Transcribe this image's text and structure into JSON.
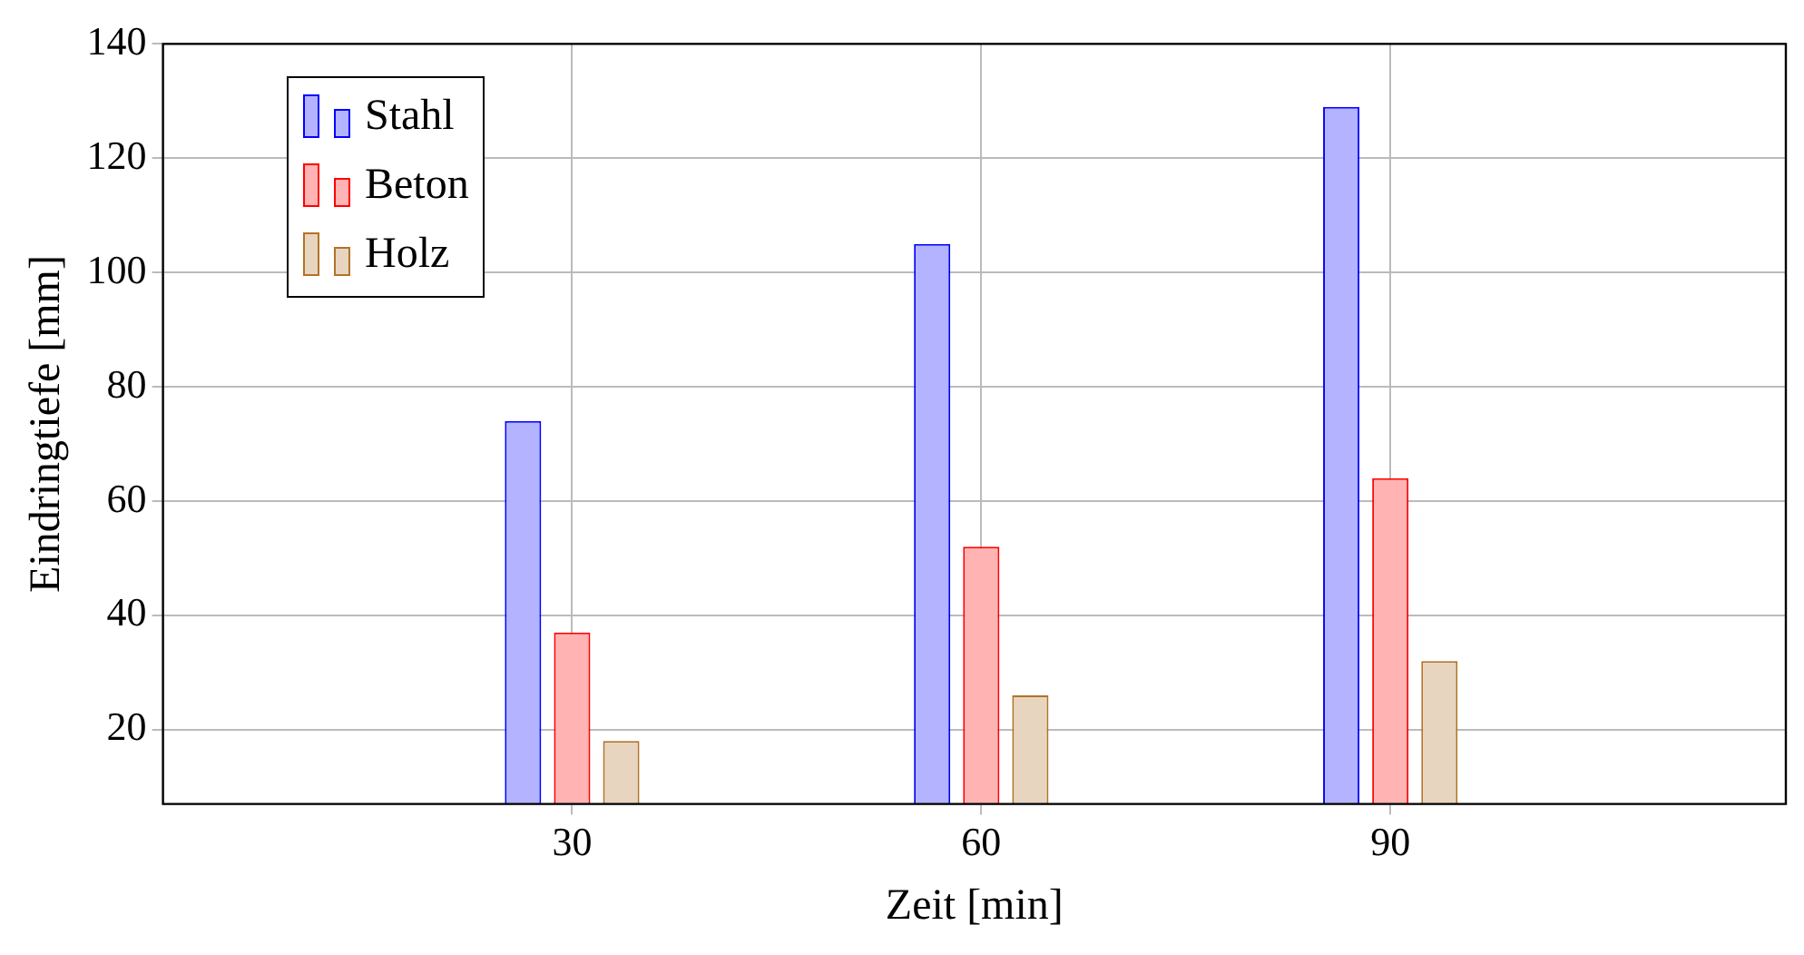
{
  "chart_data": {
    "type": "bar",
    "xlabel": "Zeit [min]",
    "ylabel": "Eindringtiefe [mm]",
    "x": [
      30,
      60,
      90
    ],
    "series": [
      {
        "name": "Stahl",
        "color": "#b3b3ff",
        "values": [
          74,
          105,
          129
        ]
      },
      {
        "name": "Beton",
        "color": "#ffb3b3",
        "values": [
          37,
          52,
          64
        ]
      },
      {
        "name": "Holz",
        "color": "#e8d5bf",
        "values": [
          18,
          26,
          32
        ]
      }
    ],
    "xlim": [
      0,
      119
    ],
    "xticks": [
      30,
      60,
      90
    ],
    "ylim": [
      7,
      140
    ],
    "yticks": [
      20,
      40,
      60,
      80,
      100,
      120,
      140
    ],
    "grid": true,
    "legend": "top left"
  }
}
